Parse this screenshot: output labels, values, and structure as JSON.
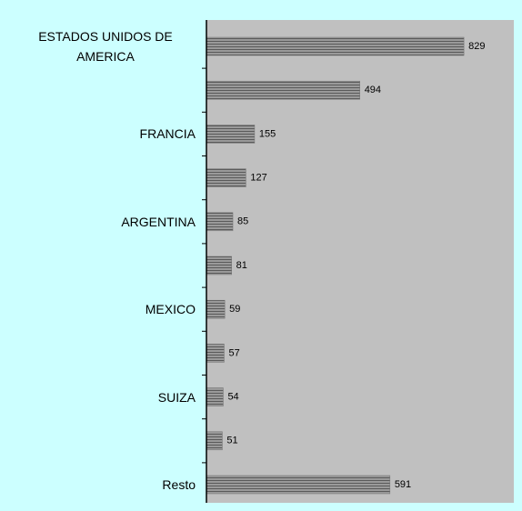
{
  "chart_data": {
    "type": "bar",
    "orientation": "horizontal",
    "categories": [
      "ESTADOS UNIDOS DE AMERICA",
      null,
      "FRANCIA",
      null,
      "ARGENTINA",
      null,
      "MEXICO",
      null,
      "SUIZA",
      null,
      "Resto"
    ],
    "values": [
      829,
      494,
      155,
      127,
      85,
      81,
      59,
      57,
      54,
      51,
      591
    ],
    "color": "#808080"
  }
}
